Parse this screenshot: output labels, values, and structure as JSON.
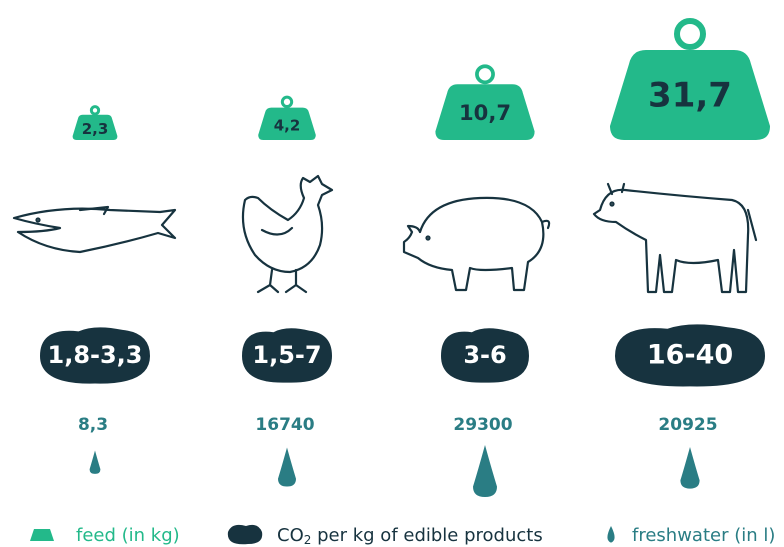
{
  "columns": [
    {
      "feed": "2,3",
      "co2": "1,8-3,3",
      "water": "8,3"
    },
    {
      "feed": "4,2",
      "co2": "1,5-7",
      "water": "16740"
    },
    {
      "feed": "10,7",
      "co2": "3-6",
      "water": "29300"
    },
    {
      "feed": "31,7",
      "co2": "16-40",
      "water": "20925"
    }
  ],
  "legend": {
    "feed": "feed (in kg)",
    "co2_prefix": "CO",
    "co2_sub": "2",
    "co2_rest": " per kg of edible products",
    "water": "freshwater (in l)"
  }
}
